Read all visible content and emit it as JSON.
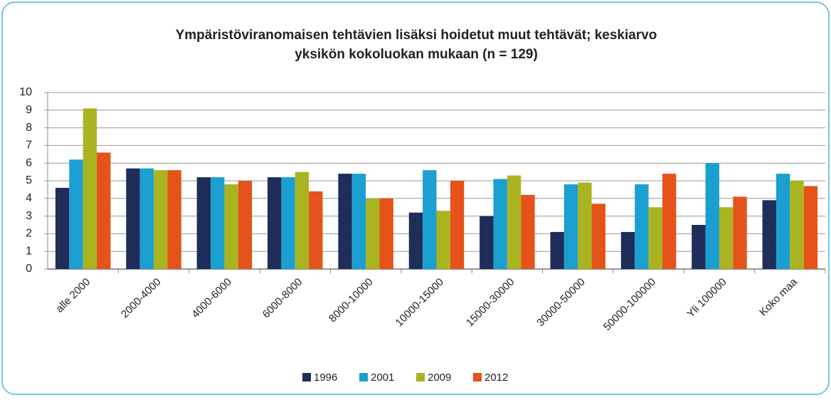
{
  "chart_data": {
    "type": "bar",
    "title": [
      "Ympäristöviranomaisen tehtävien lisäksi hoidetut muut tehtävät; keskiarvo",
      "yksikön kokoluokan mukaan (n = 129)"
    ],
    "categories": [
      "alle 2000",
      "2000-4000",
      "4000-6000",
      "6000-8000",
      "8000-10000",
      "10000-15000",
      "15000-30000",
      "30000-50000",
      "50000-100000",
      "Yli 100000",
      "Koko maa"
    ],
    "series": [
      {
        "name": "1996",
        "color": "#1f2d5a",
        "values": [
          4.6,
          5.7,
          5.2,
          5.2,
          5.4,
          3.2,
          3.0,
          2.1,
          2.1,
          2.5,
          3.9
        ]
      },
      {
        "name": "2001",
        "color": "#1b9fd0",
        "values": [
          6.2,
          5.7,
          5.2,
          5.2,
          5.4,
          5.6,
          5.1,
          4.8,
          4.8,
          6.0,
          5.4
        ]
      },
      {
        "name": "2009",
        "color": "#aab420",
        "values": [
          9.1,
          5.6,
          4.8,
          5.5,
          4.0,
          3.3,
          5.3,
          4.9,
          3.5,
          3.5,
          5.0
        ]
      },
      {
        "name": "2012",
        "color": "#e5531a",
        "values": [
          6.6,
          5.6,
          5.0,
          4.4,
          4.0,
          5.0,
          4.2,
          3.7,
          5.4,
          4.1,
          4.7
        ]
      }
    ],
    "ylim": [
      0,
      10
    ],
    "yticks": [
      0,
      1,
      2,
      3,
      4,
      5,
      6,
      7,
      8,
      9,
      10
    ],
    "grid": true,
    "legend": "bottom"
  }
}
